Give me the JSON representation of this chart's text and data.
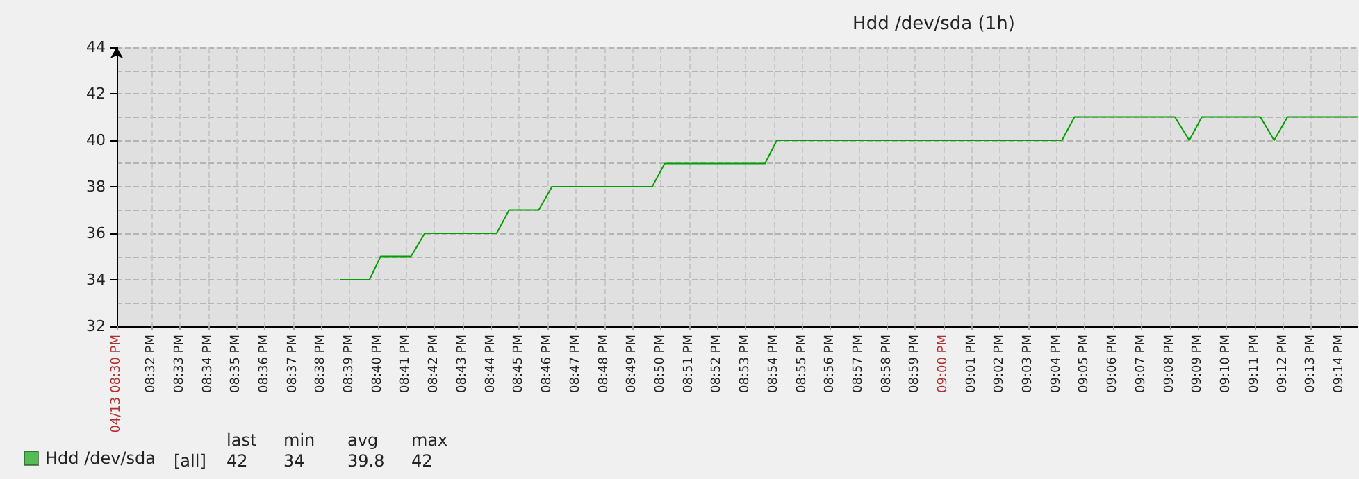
{
  "chart_data": {
    "type": "line",
    "title": "Hdd /dev/sda (1h)",
    "x": [
      20.6447,
      20.6617,
      20.6683,
      20.6862,
      20.6943,
      20.7367,
      20.744,
      20.7615,
      20.7693,
      20.8283,
      20.8357,
      20.8948,
      20.9018,
      21.0698,
      21.0772,
      21.1363,
      21.1448,
      21.1522,
      21.1867,
      21.1948,
      21.2027,
      21.244
    ],
    "series": [
      {
        "name": "Hdd /dev/sda",
        "color": "#00a000",
        "values": [
          34,
          34,
          35,
          35,
          36,
          36,
          37,
          37,
          38,
          38,
          39,
          39,
          40,
          40,
          41,
          41,
          40,
          41,
          41,
          40,
          41,
          41
        ]
      }
    ],
    "xlim": [
      20.5128,
      21.244
    ],
    "xticks": [
      {
        "value": 20.5128,
        "label": "04/13 08:30 PM"
      },
      {
        "value": 20.5333,
        "label": "08:32 PM"
      },
      {
        "value": 20.55,
        "label": "08:33 PM"
      },
      {
        "value": 20.5667,
        "label": "08:34 PM"
      },
      {
        "value": 20.5833,
        "label": "08:35 PM"
      },
      {
        "value": 20.6,
        "label": "08:36 PM"
      },
      {
        "value": 20.6167,
        "label": "08:37 PM"
      },
      {
        "value": 20.6333,
        "label": "08:38 PM"
      },
      {
        "value": 20.65,
        "label": "08:39 PM"
      },
      {
        "value": 20.6667,
        "label": "08:40 PM"
      },
      {
        "value": 20.6833,
        "label": "08:41 PM"
      },
      {
        "value": 20.7,
        "label": "08:42 PM"
      },
      {
        "value": 20.7167,
        "label": "08:43 PM"
      },
      {
        "value": 20.7333,
        "label": "08:44 PM"
      },
      {
        "value": 20.75,
        "label": "08:45 PM"
      },
      {
        "value": 20.7667,
        "label": "08:46 PM"
      },
      {
        "value": 20.7833,
        "label": "08:47 PM"
      },
      {
        "value": 20.8,
        "label": "08:48 PM"
      },
      {
        "value": 20.8167,
        "label": "08:49 PM"
      },
      {
        "value": 20.8333,
        "label": "08:50 PM"
      },
      {
        "value": 20.85,
        "label": "08:51 PM"
      },
      {
        "value": 20.8667,
        "label": "08:52 PM"
      },
      {
        "value": 20.8833,
        "label": "08:53 PM"
      },
      {
        "value": 20.9,
        "label": "08:54 PM"
      },
      {
        "value": 20.9167,
        "label": "08:55 PM"
      },
      {
        "value": 20.9333,
        "label": "08:56 PM"
      },
      {
        "value": 20.95,
        "label": "08:57 PM"
      },
      {
        "value": 20.9667,
        "label": "08:58 PM"
      },
      {
        "value": 20.9833,
        "label": "08:59 PM"
      },
      {
        "value": 21,
        "label": "09:00 PM"
      },
      {
        "value": 21.0167,
        "label": "09:01 PM"
      },
      {
        "value": 21.0333,
        "label": "09:02 PM"
      },
      {
        "value": 21.05,
        "label": "09:03 PM"
      },
      {
        "value": 21.0667,
        "label": "09:04 PM"
      },
      {
        "value": 21.0833,
        "label": "09:05 PM"
      },
      {
        "value": 21.1,
        "label": "09:06 PM"
      },
      {
        "value": 21.1167,
        "label": "09:07 PM"
      },
      {
        "value": 21.1333,
        "label": "09:08 PM"
      },
      {
        "value": 21.15,
        "label": "09:09 PM"
      },
      {
        "value": 21.1667,
        "label": "09:10 PM"
      },
      {
        "value": 21.1833,
        "label": "09:11 PM"
      },
      {
        "value": 21.2,
        "label": "09:12 PM"
      },
      {
        "value": 21.2167,
        "label": "09:13 PM"
      },
      {
        "value": 21.2333,
        "label": "09:14 PM"
      }
    ],
    "ylim": [
      32,
      44
    ],
    "yticks": [
      32,
      34,
      36,
      38,
      40,
      42,
      44
    ],
    "grid": true,
    "legend": "bottom left",
    "marker": "none",
    "line_style": "solid",
    "annotations": [
      "[all]",
      "last",
      "min",
      "avg",
      "max",
      "42",
      "34",
      "39.8",
      "42"
    ]
  }
}
